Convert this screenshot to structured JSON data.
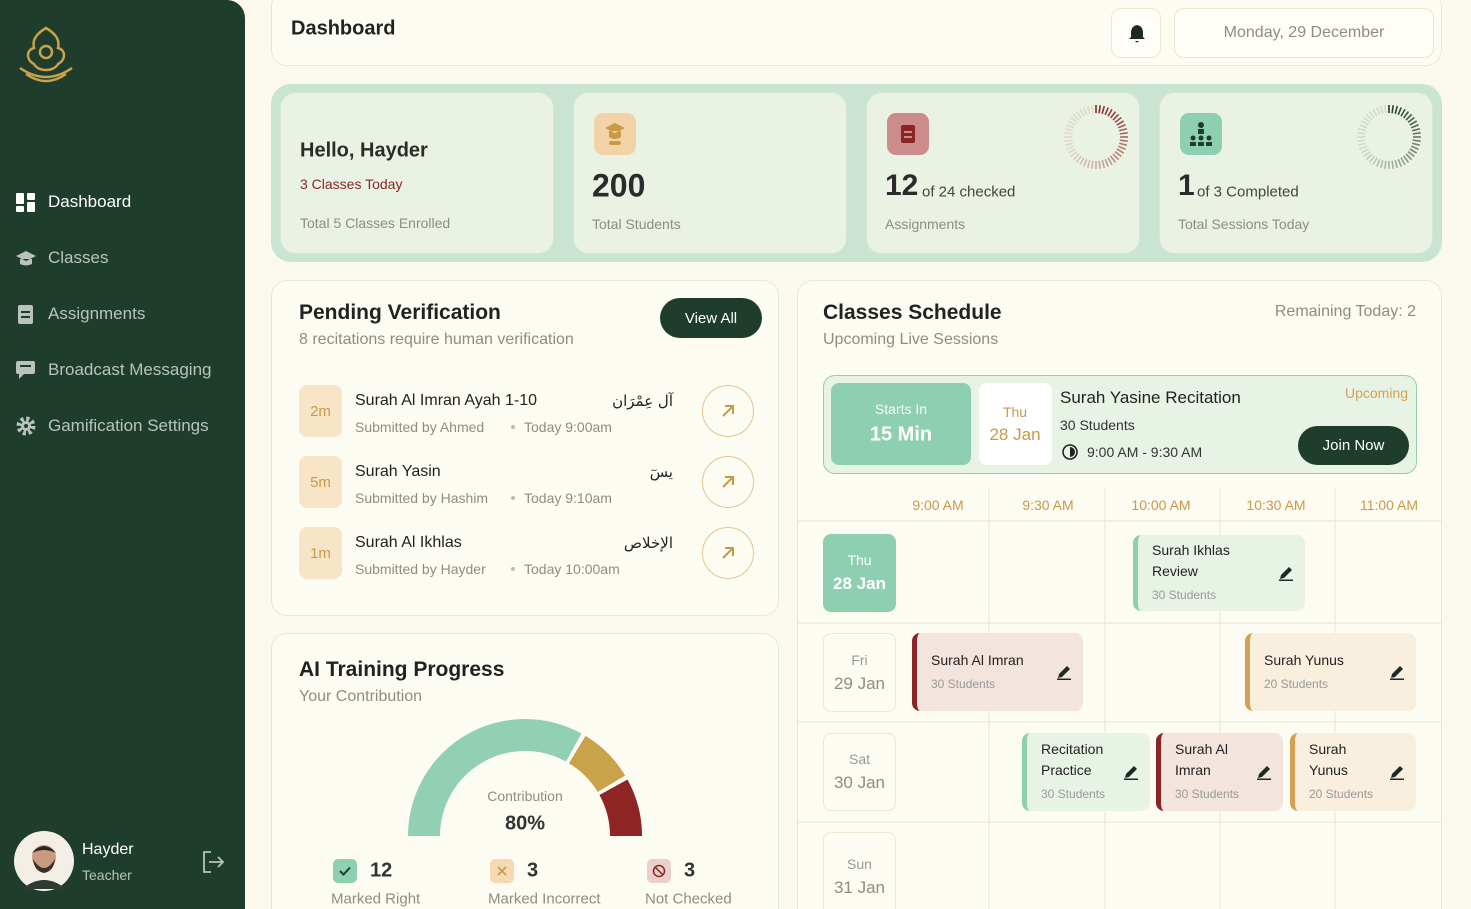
{
  "sidebar": {
    "nav": [
      "Dashboard",
      "Classes",
      "Assignments",
      "Broadcast Messaging",
      "Gamification Settings"
    ],
    "user": {
      "name": "Hayder",
      "role": "Teacher"
    }
  },
  "header": {
    "title": "Dashboard",
    "date": "Monday, 29 December"
  },
  "summary": {
    "greeting": {
      "title": "Hello, Hayder",
      "highlight": "3 Classes Today",
      "caption": "Total 5 Classes Enrolled"
    },
    "students": {
      "value": 200,
      "caption": "Total Students"
    },
    "assignments": {
      "value": 12,
      "detail": "of 24 checked",
      "caption": "Assignments"
    },
    "sessions": {
      "value": 1,
      "detail": "of 3 Completed",
      "caption": "Total Sessions Today"
    }
  },
  "pending": {
    "title": "Pending Verification",
    "subtitle": "8 recitations require human verification",
    "button": "View All",
    "items": [
      {
        "age": "2m",
        "surah": "Surah Al Imran Ayah 1-10",
        "arabic": "آل عِمْرَان",
        "submitted": "Submitted by Ahmed",
        "time": "Today 9:00am"
      },
      {
        "age": "5m",
        "surah": "Surah Yasin",
        "arabic": "يسٓ",
        "submitted": "Submitted by Hashim",
        "time": "Today 9:10am"
      },
      {
        "age": "1m",
        "surah": "Surah Al Ikhlas",
        "arabic": "الإخلاص",
        "submitted": "Submitted by Hayder",
        "time": "Today 10:00am"
      }
    ]
  },
  "ai_training": {
    "title": "AI Training Progress",
    "subtitle": "Your Contribution",
    "center_label": "Contribution",
    "center_value": "80%",
    "legend": [
      {
        "count": 12,
        "label": "Marked Right",
        "color": "#92d0b5"
      },
      {
        "count": 3,
        "label": "Marked Incorrect",
        "color": "#c9a24a"
      },
      {
        "count": 3,
        "label": "Not Checked",
        "color": "#8f2424"
      }
    ]
  },
  "schedule": {
    "title": "Classes Schedule",
    "subtitle": "Upcoming Live Sessions",
    "remaining": "Remaining Today: 2",
    "next": {
      "starts_label": "Starts In",
      "starts_value": "15 Min",
      "day": "Thu",
      "date": "28 Jan",
      "title": "Surah Yasine Recitation",
      "students": "30 Students",
      "time": "9:00 AM - 9:30 AM",
      "status": "Upcoming",
      "button": "Join Now"
    },
    "times": [
      "9:00 AM",
      "9:30 AM",
      "10:00 AM",
      "10:30 AM",
      "11:00 AM"
    ],
    "days": [
      {
        "day": "Thu",
        "date": "28 Jan",
        "events": [
          {
            "title": "Surah Ikhlas Review",
            "students": "30 Students",
            "color": "#8fcfb1"
          }
        ]
      },
      {
        "day": "Fri",
        "date": "29 Jan",
        "events": [
          {
            "title": "Surah Al Imran",
            "students": "30 Students",
            "color": "#8b2525"
          },
          {
            "title": "Surah Yunus",
            "students": "20 Students",
            "color": "#d4a154"
          }
        ]
      },
      {
        "day": "Sat",
        "date": "30 Jan",
        "events": [
          {
            "title": "Recitation Practice",
            "students": "30 Students",
            "color": "#8fcfb1"
          },
          {
            "title": "Surah Al Imran",
            "students": "30 Students",
            "color": "#8b2525"
          },
          {
            "title": "Surah Yunus",
            "students": "20 Students",
            "color": "#d4a154"
          }
        ]
      },
      {
        "day": "Sun",
        "date": "31 Jan",
        "events": []
      }
    ]
  }
}
